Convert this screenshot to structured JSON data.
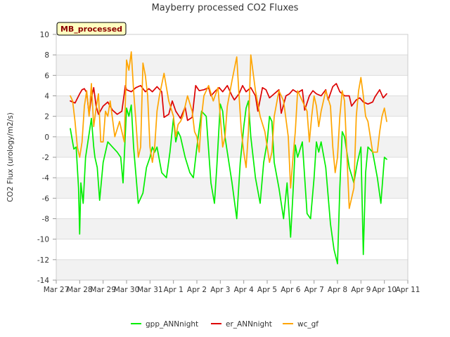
{
  "chart_data": {
    "type": "line",
    "title": "Mayberry processed CO2 Fluxes",
    "xlabel": "",
    "ylabel": "CO2 Flux (urology/m2/s)",
    "xlim": [
      0,
      15
    ],
    "ylim": [
      -14,
      10
    ],
    "yticks": [
      -14,
      -12,
      -10,
      -8,
      -6,
      -4,
      -2,
      0,
      2,
      4,
      6,
      8,
      10
    ],
    "xtick_labels": [
      "Mar 27",
      "Mar 28",
      "Mar 29",
      "Mar 30",
      "Mar 31",
      "Apr 1",
      "Apr 2",
      "Apr 3",
      "Apr 4",
      "Apr 5",
      "Apr 6",
      "Apr 7",
      "Apr 8",
      "Apr 9",
      "Apr 10",
      "Apr 11"
    ],
    "annotation": "MB_processed",
    "grid": true,
    "legend_position": "bottom",
    "series": [
      {
        "name": "gpp_ANNnight",
        "color": "#00ee00",
        "x": [
          0.6,
          0.75,
          0.85,
          0.95,
          1.0,
          1.05,
          1.15,
          1.25,
          1.35,
          1.5,
          1.6,
          1.65,
          1.75,
          1.85,
          2.0,
          2.2,
          2.4,
          2.6,
          2.75,
          2.85,
          3.0,
          3.1,
          3.2,
          3.3,
          3.5,
          3.7,
          3.85,
          4.0,
          4.1,
          4.2,
          4.3,
          4.5,
          4.7,
          4.85,
          5.0,
          5.1,
          5.2,
          5.3,
          5.5,
          5.7,
          5.85,
          6.0,
          6.2,
          6.4,
          6.6,
          6.75,
          6.85,
          7.0,
          7.1,
          7.2,
          7.3,
          7.5,
          7.7,
          7.85,
          8.0,
          8.1,
          8.2,
          8.3,
          8.5,
          8.7,
          8.85,
          9.0,
          9.1,
          9.2,
          9.3,
          9.5,
          9.7,
          9.85,
          10.0,
          10.1,
          10.2,
          10.3,
          10.5,
          10.7,
          10.85,
          11.0,
          11.1,
          11.2,
          11.3,
          11.5,
          11.7,
          11.85,
          12.0,
          12.1,
          12.2,
          12.3,
          12.5,
          12.7,
          12.85,
          13.0,
          13.1,
          13.2,
          13.3,
          13.5,
          13.7,
          13.85,
          14.0,
          14.1
        ],
        "values": [
          0.8,
          -1.2,
          -1.0,
          -5.0,
          -9.5,
          -4.5,
          -6.5,
          -2.0,
          -0.5,
          1.8,
          -1.0,
          -2.0,
          -3.0,
          -6.2,
          -2.5,
          -0.5,
          -1.0,
          -1.5,
          -2.0,
          -4.5,
          2.8,
          2.0,
          3.1,
          -1.0,
          -6.5,
          -5.5,
          -3.0,
          -2.0,
          -1.0,
          -1.5,
          -1.0,
          -3.5,
          -4.0,
          -1.5,
          1.8,
          -0.5,
          0.5,
          0.0,
          -2.0,
          -3.5,
          -4.0,
          -1.0,
          2.5,
          2.0,
          -4.5,
          -6.5,
          -3.0,
          3.2,
          2.5,
          0.0,
          -1.5,
          -4.5,
          -8.0,
          -2.5,
          1.0,
          2.8,
          3.5,
          0.0,
          -4.0,
          -6.5,
          -2.5,
          -0.5,
          2.0,
          1.5,
          -2.5,
          -5.0,
          -8.0,
          -4.5,
          -9.8,
          -5.5,
          -0.8,
          -2.0,
          -0.5,
          -7.5,
          -8.0,
          -4.0,
          -0.5,
          -1.5,
          -0.5,
          -3.0,
          -8.5,
          -11.0,
          -12.4,
          -5.0,
          0.5,
          0.0,
          -3.0,
          -4.5,
          -2.5,
          -1.0,
          -11.5,
          -3.5,
          -1.0,
          -1.5,
          -4.0,
          -6.5,
          -2.0,
          -2.2
        ]
      },
      {
        "name": "er_ANNnight",
        "color": "#dd0000",
        "x": [
          0.6,
          0.8,
          1.0,
          1.1,
          1.2,
          1.3,
          1.4,
          1.5,
          1.6,
          1.7,
          1.8,
          2.0,
          2.2,
          2.4,
          2.6,
          2.8,
          2.95,
          3.0,
          3.2,
          3.4,
          3.6,
          3.8,
          3.95,
          4.1,
          4.3,
          4.5,
          4.6,
          4.8,
          4.95,
          5.1,
          5.3,
          5.5,
          5.6,
          5.8,
          5.95,
          6.1,
          6.3,
          6.5,
          6.6,
          6.8,
          6.95,
          7.1,
          7.3,
          7.5,
          7.6,
          7.8,
          7.95,
          8.1,
          8.3,
          8.5,
          8.6,
          8.8,
          8.95,
          9.1,
          9.3,
          9.5,
          9.6,
          9.8,
          9.95,
          10.1,
          10.3,
          10.5,
          10.6,
          10.8,
          10.95,
          11.1,
          11.3,
          11.5,
          11.6,
          11.8,
          11.95,
          12.1,
          12.3,
          12.5,
          12.6,
          12.8,
          12.95,
          13.1,
          13.3,
          13.5,
          13.6,
          13.8,
          13.95,
          14.1
        ],
        "values": [
          3.5,
          3.3,
          4.2,
          4.6,
          4.7,
          4.3,
          2.2,
          3.8,
          4.8,
          3.0,
          2.2,
          3.0,
          3.4,
          2.6,
          2.2,
          2.5,
          5.0,
          4.6,
          4.4,
          4.8,
          5.0,
          4.4,
          4.7,
          4.4,
          4.9,
          4.4,
          1.9,
          2.2,
          3.5,
          2.5,
          1.8,
          2.9,
          1.6,
          1.9,
          5.0,
          4.5,
          4.6,
          4.8,
          4.0,
          4.5,
          4.8,
          4.4,
          5.0,
          4.0,
          3.6,
          4.2,
          5.0,
          4.4,
          4.8,
          4.0,
          2.5,
          4.8,
          4.6,
          3.8,
          4.2,
          4.6,
          2.3,
          4.0,
          4.2,
          4.6,
          4.3,
          4.6,
          2.6,
          4.0,
          4.5,
          4.2,
          4.0,
          4.6,
          3.6,
          4.9,
          5.2,
          4.4,
          4.0,
          4.0,
          3.0,
          3.6,
          3.8,
          3.4,
          3.2,
          3.4,
          3.9,
          4.6,
          3.8,
          4.2
        ]
      },
      {
        "name": "wc_gf",
        "color": "#ffa500",
        "x": [
          0.6,
          0.7,
          0.8,
          0.9,
          1.0,
          1.1,
          1.2,
          1.3,
          1.4,
          1.5,
          1.6,
          1.7,
          1.8,
          1.9,
          2.0,
          2.1,
          2.2,
          2.3,
          2.5,
          2.7,
          2.9,
          3.0,
          3.1,
          3.2,
          3.3,
          3.4,
          3.5,
          3.6,
          3.7,
          3.8,
          3.9,
          4.0,
          4.1,
          4.2,
          4.3,
          4.4,
          4.6,
          4.8,
          5.0,
          5.1,
          5.2,
          5.3,
          5.4,
          5.6,
          5.8,
          5.9,
          6.0,
          6.1,
          6.2,
          6.3,
          6.5,
          6.7,
          6.9,
          7.0,
          7.1,
          7.2,
          7.3,
          7.5,
          7.7,
          7.8,
          7.9,
          8.0,
          8.1,
          8.2,
          8.3,
          8.5,
          8.7,
          8.9,
          9.0,
          9.1,
          9.2,
          9.3,
          9.5,
          9.7,
          9.9,
          10.0,
          10.1,
          10.2,
          10.3,
          10.5,
          10.7,
          10.8,
          10.9,
          11.0,
          11.1,
          11.2,
          11.3,
          11.5,
          11.7,
          11.8,
          11.9,
          12.0,
          12.1,
          12.2,
          12.3,
          12.5,
          12.7,
          12.8,
          12.9,
          13.0,
          13.1,
          13.2,
          13.3,
          13.5,
          13.7,
          13.8,
          13.9,
          14.0,
          14.1
        ],
        "values": [
          4.0,
          3.5,
          1.5,
          -1.0,
          -2.0,
          -0.5,
          3.0,
          4.5,
          2.0,
          5.2,
          1.0,
          2.8,
          4.2,
          -0.5,
          -0.5,
          2.5,
          2.0,
          3.5,
          0.0,
          1.5,
          -0.5,
          7.5,
          6.5,
          8.3,
          4.5,
          1.5,
          -2.0,
          -1.0,
          7.2,
          6.0,
          4.0,
          -1.0,
          -2.5,
          -1.0,
          2.5,
          4.0,
          6.2,
          3.5,
          2.0,
          0.0,
          1.2,
          1.5,
          2.0,
          4.0,
          2.5,
          0.5,
          0.0,
          -1.5,
          2.0,
          4.0,
          5.0,
          3.5,
          4.8,
          2.0,
          -1.0,
          0.0,
          3.0,
          5.5,
          7.8,
          4.0,
          0.5,
          -1.5,
          -3.0,
          0.5,
          8.0,
          4.5,
          2.0,
          0.5,
          -1.0,
          -2.5,
          -1.5,
          2.0,
          4.5,
          3.5,
          0.0,
          -5.0,
          -2.0,
          0.5,
          4.5,
          3.5,
          2.5,
          -0.5,
          2.0,
          4.0,
          3.0,
          1.0,
          2.5,
          4.5,
          3.0,
          -1.0,
          -3.5,
          -2.0,
          2.0,
          4.5,
          3.5,
          -7.0,
          -5.0,
          2.0,
          4.5,
          5.8,
          4.0,
          2.0,
          1.5,
          -1.5,
          -1.5,
          0.5,
          2.0,
          2.8,
          1.5
        ]
      }
    ]
  }
}
